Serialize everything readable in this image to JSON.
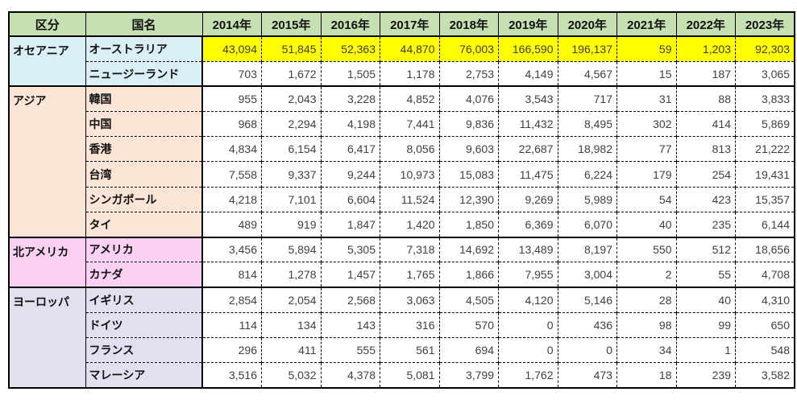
{
  "table": {
    "headers": {
      "region": "区分",
      "country": "国名",
      "years": [
        "2014年",
        "2015年",
        "2016年",
        "2017年",
        "2018年",
        "2019年",
        "2020年",
        "2021年",
        "2022年",
        "2023年"
      ]
    },
    "groups": [
      {
        "region": "オセアニア",
        "color": "#d9eef5",
        "rows": [
          {
            "country": "オーストラリア",
            "highlight": true,
            "values": [
              43094,
              51845,
              52363,
              44870,
              76003,
              166590,
              196137,
              59,
              1203,
              92303
            ]
          },
          {
            "country": "ニュージーランド",
            "highlight": false,
            "values": [
              703,
              1672,
              1505,
              1178,
              2753,
              4149,
              4567,
              15,
              187,
              3065
            ]
          }
        ]
      },
      {
        "region": "アジア",
        "color": "#fce4d6",
        "rows": [
          {
            "country": "韓国",
            "highlight": false,
            "values": [
              955,
              2043,
              3228,
              4852,
              4076,
              3543,
              717,
              31,
              88,
              3833
            ]
          },
          {
            "country": "中国",
            "highlight": false,
            "values": [
              968,
              2294,
              4198,
              7441,
              9836,
              11432,
              8495,
              302,
              414,
              5869
            ]
          },
          {
            "country": "香港",
            "highlight": false,
            "values": [
              4834,
              6154,
              6417,
              8056,
              9603,
              22687,
              18982,
              77,
              813,
              21222
            ]
          },
          {
            "country": "台湾",
            "highlight": false,
            "values": [
              7558,
              9337,
              9244,
              10973,
              15083,
              11475,
              6224,
              179,
              254,
              19431
            ]
          },
          {
            "country": "シンガポール",
            "highlight": false,
            "values": [
              4218,
              7101,
              6604,
              11524,
              12390,
              9269,
              5989,
              54,
              423,
              15357
            ]
          },
          {
            "country": "タイ",
            "highlight": false,
            "values": [
              489,
              919,
              1847,
              1420,
              1850,
              6369,
              6070,
              40,
              235,
              6144
            ]
          }
        ]
      },
      {
        "region": "北アメリカ",
        "color": "#fad0f3",
        "rows": [
          {
            "country": "アメリカ",
            "highlight": false,
            "values": [
              3456,
              5894,
              5305,
              7318,
              14692,
              13489,
              8197,
              550,
              512,
              18656
            ]
          },
          {
            "country": "カナダ",
            "highlight": false,
            "values": [
              814,
              1278,
              1457,
              1765,
              1866,
              7955,
              3004,
              2,
              55,
              4708
            ]
          }
        ]
      },
      {
        "region": "ヨーロッパ",
        "color": "#e4dfee",
        "rows": [
          {
            "country": "イギリス",
            "highlight": false,
            "values": [
              2854,
              2054,
              2568,
              3063,
              4505,
              4120,
              5146,
              28,
              40,
              4310
            ]
          },
          {
            "country": "ドイツ",
            "highlight": false,
            "values": [
              114,
              134,
              143,
              316,
              570,
              0,
              436,
              98,
              99,
              650
            ]
          },
          {
            "country": "フランス",
            "highlight": false,
            "values": [
              296,
              411,
              555,
              561,
              694,
              0,
              0,
              34,
              1,
              548
            ]
          },
          {
            "country": "マレーシア",
            "highlight": false,
            "values": [
              3516,
              5032,
              4378,
              5081,
              3799,
              1762,
              473,
              18,
              239,
              3582
            ]
          }
        ]
      }
    ]
  },
  "colors": {
    "header_bg": "#c6e0b4",
    "highlight": "#ffff00",
    "border": "#000000",
    "number_text": "#3f3f3f",
    "oceania_bg": "#d9eef5",
    "asia_bg": "#fce4d6",
    "north_america_bg": "#fad0f3",
    "europe_bg": "#e4dfee"
  }
}
